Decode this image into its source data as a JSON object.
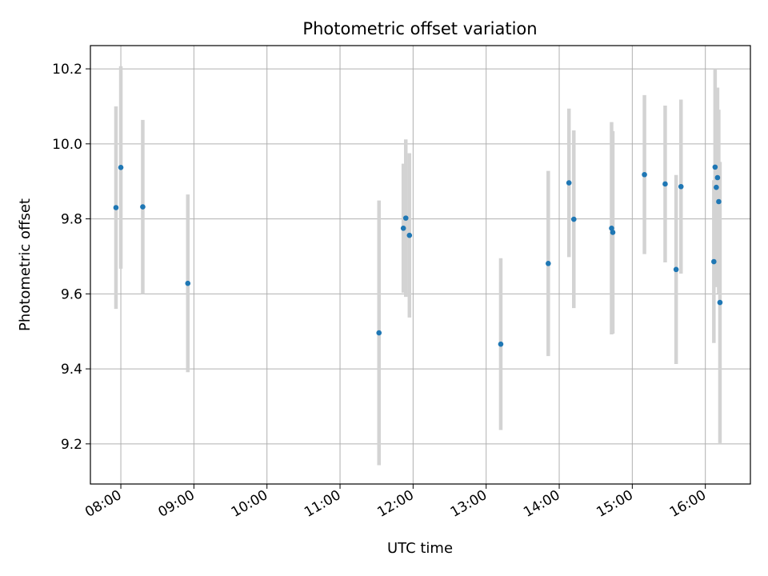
{
  "chart_data": {
    "type": "scatter",
    "title": "Photometric offset variation",
    "xlabel": "UTC time",
    "ylabel": "Photometric offset",
    "x_unit": "UTC time (HH:MM)",
    "xlim": [
      "07:35",
      "16:37"
    ],
    "ylim": [
      9.093,
      10.262
    ],
    "x_ticks": [
      "08:00",
      "09:00",
      "10:00",
      "11:00",
      "12:00",
      "13:00",
      "14:00",
      "15:00",
      "16:00"
    ],
    "y_ticks": [
      9.2,
      9.4,
      9.6,
      9.8,
      10.0,
      10.2
    ],
    "y_tick_labels": [
      "9.2",
      "9.4",
      "9.6",
      "9.8",
      "10.0",
      "10.2"
    ],
    "grid": true,
    "marker_color": "#1f77b4",
    "errorbar_color": "#d3d3d3",
    "points": [
      {
        "x": "07:56",
        "y": 9.83,
        "err": 0.27
      },
      {
        "x": "08:00",
        "y": 9.937,
        "err": 0.27
      },
      {
        "x": "08:18",
        "y": 9.832,
        "err": 0.232
      },
      {
        "x": "08:55",
        "y": 9.628,
        "err": 0.237
      },
      {
        "x": "11:32",
        "y": 9.496,
        "err": 0.353
      },
      {
        "x": "11:52",
        "y": 9.775,
        "err": 0.172
      },
      {
        "x": "11:54",
        "y": 9.802,
        "err": 0.21
      },
      {
        "x": "11:57",
        "y": 9.756,
        "err": 0.219
      },
      {
        "x": "13:12",
        "y": 9.466,
        "err": 0.229
      },
      {
        "x": "13:51",
        "y": 9.681,
        "err": 0.247
      },
      {
        "x": "14:08",
        "y": 9.896,
        "err": 0.198
      },
      {
        "x": "14:12",
        "y": 9.799,
        "err": 0.237
      },
      {
        "x": "14:43",
        "y": 9.775,
        "err": 0.283
      },
      {
        "x": "14:44",
        "y": 9.764,
        "err": 0.27
      },
      {
        "x": "15:10",
        "y": 9.918,
        "err": 0.212
      },
      {
        "x": "15:27",
        "y": 9.893,
        "err": 0.209
      },
      {
        "x": "15:36",
        "y": 9.665,
        "err": 0.252
      },
      {
        "x": "15:40",
        "y": 9.886,
        "err": 0.232
      },
      {
        "x": "16:07",
        "y": 9.686,
        "err": 0.217
      },
      {
        "x": "16:08",
        "y": 9.938,
        "err": 0.262
      },
      {
        "x": "16:09",
        "y": 9.884,
        "err": 0.266
      },
      {
        "x": "16:10",
        "y": 9.91,
        "err": 0.24
      },
      {
        "x": "16:11",
        "y": 9.846,
        "err": 0.245
      },
      {
        "x": "16:12",
        "y": 9.577,
        "err": 0.375
      }
    ]
  }
}
